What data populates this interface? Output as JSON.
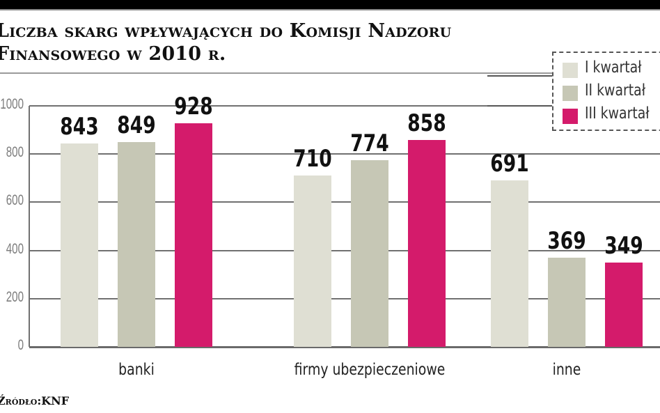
{
  "title": {
    "line1_start": "L",
    "line1_rest": "iczba skarg wpływających do Komisji Nadzoru",
    "line2": "Finansowego w 2010 r."
  },
  "source": "Źródło:KNF",
  "legend": {
    "items": [
      {
        "label": "I kwartał",
        "color": "#dfdfd3"
      },
      {
        "label": "II kwartał",
        "color": "#c6c7b5"
      },
      {
        "label": "III kwartał",
        "color": "#d41b6b"
      }
    ]
  },
  "y_axis": {
    "ticks": [
      "0",
      "200",
      "400",
      "600",
      "800",
      "1000"
    ]
  },
  "categories": [
    {
      "label": "banki",
      "values": [
        "843",
        "849",
        "928"
      ]
    },
    {
      "label": "firmy ubezpieczeniowe",
      "values": [
        "710",
        "774",
        "858"
      ]
    },
    {
      "label": "inne",
      "values": [
        "691",
        "369",
        "349"
      ]
    }
  ],
  "chart_data": {
    "type": "bar",
    "title": "Liczba skarg wpływających do Komisji Nadzoru Finansowego w 2010 r.",
    "categories": [
      "banki",
      "firmy ubezpieczeniowe",
      "inne"
    ],
    "series": [
      {
        "name": "I kwartał",
        "values": [
          843,
          710,
          691
        ],
        "color": "#dfdfd3"
      },
      {
        "name": "II kwartał",
        "values": [
          849,
          774,
          369
        ],
        "color": "#c6c7b5"
      },
      {
        "name": "III kwartał",
        "values": [
          928,
          858,
          349
        ],
        "color": "#d41b6b"
      }
    ],
    "xlabel": "",
    "ylabel": "",
    "ylim": [
      0,
      1000
    ],
    "yticks": [
      0,
      200,
      400,
      600,
      800,
      1000
    ],
    "grid": true,
    "legend_position": "top-right",
    "source": "Źródło: KNF"
  }
}
